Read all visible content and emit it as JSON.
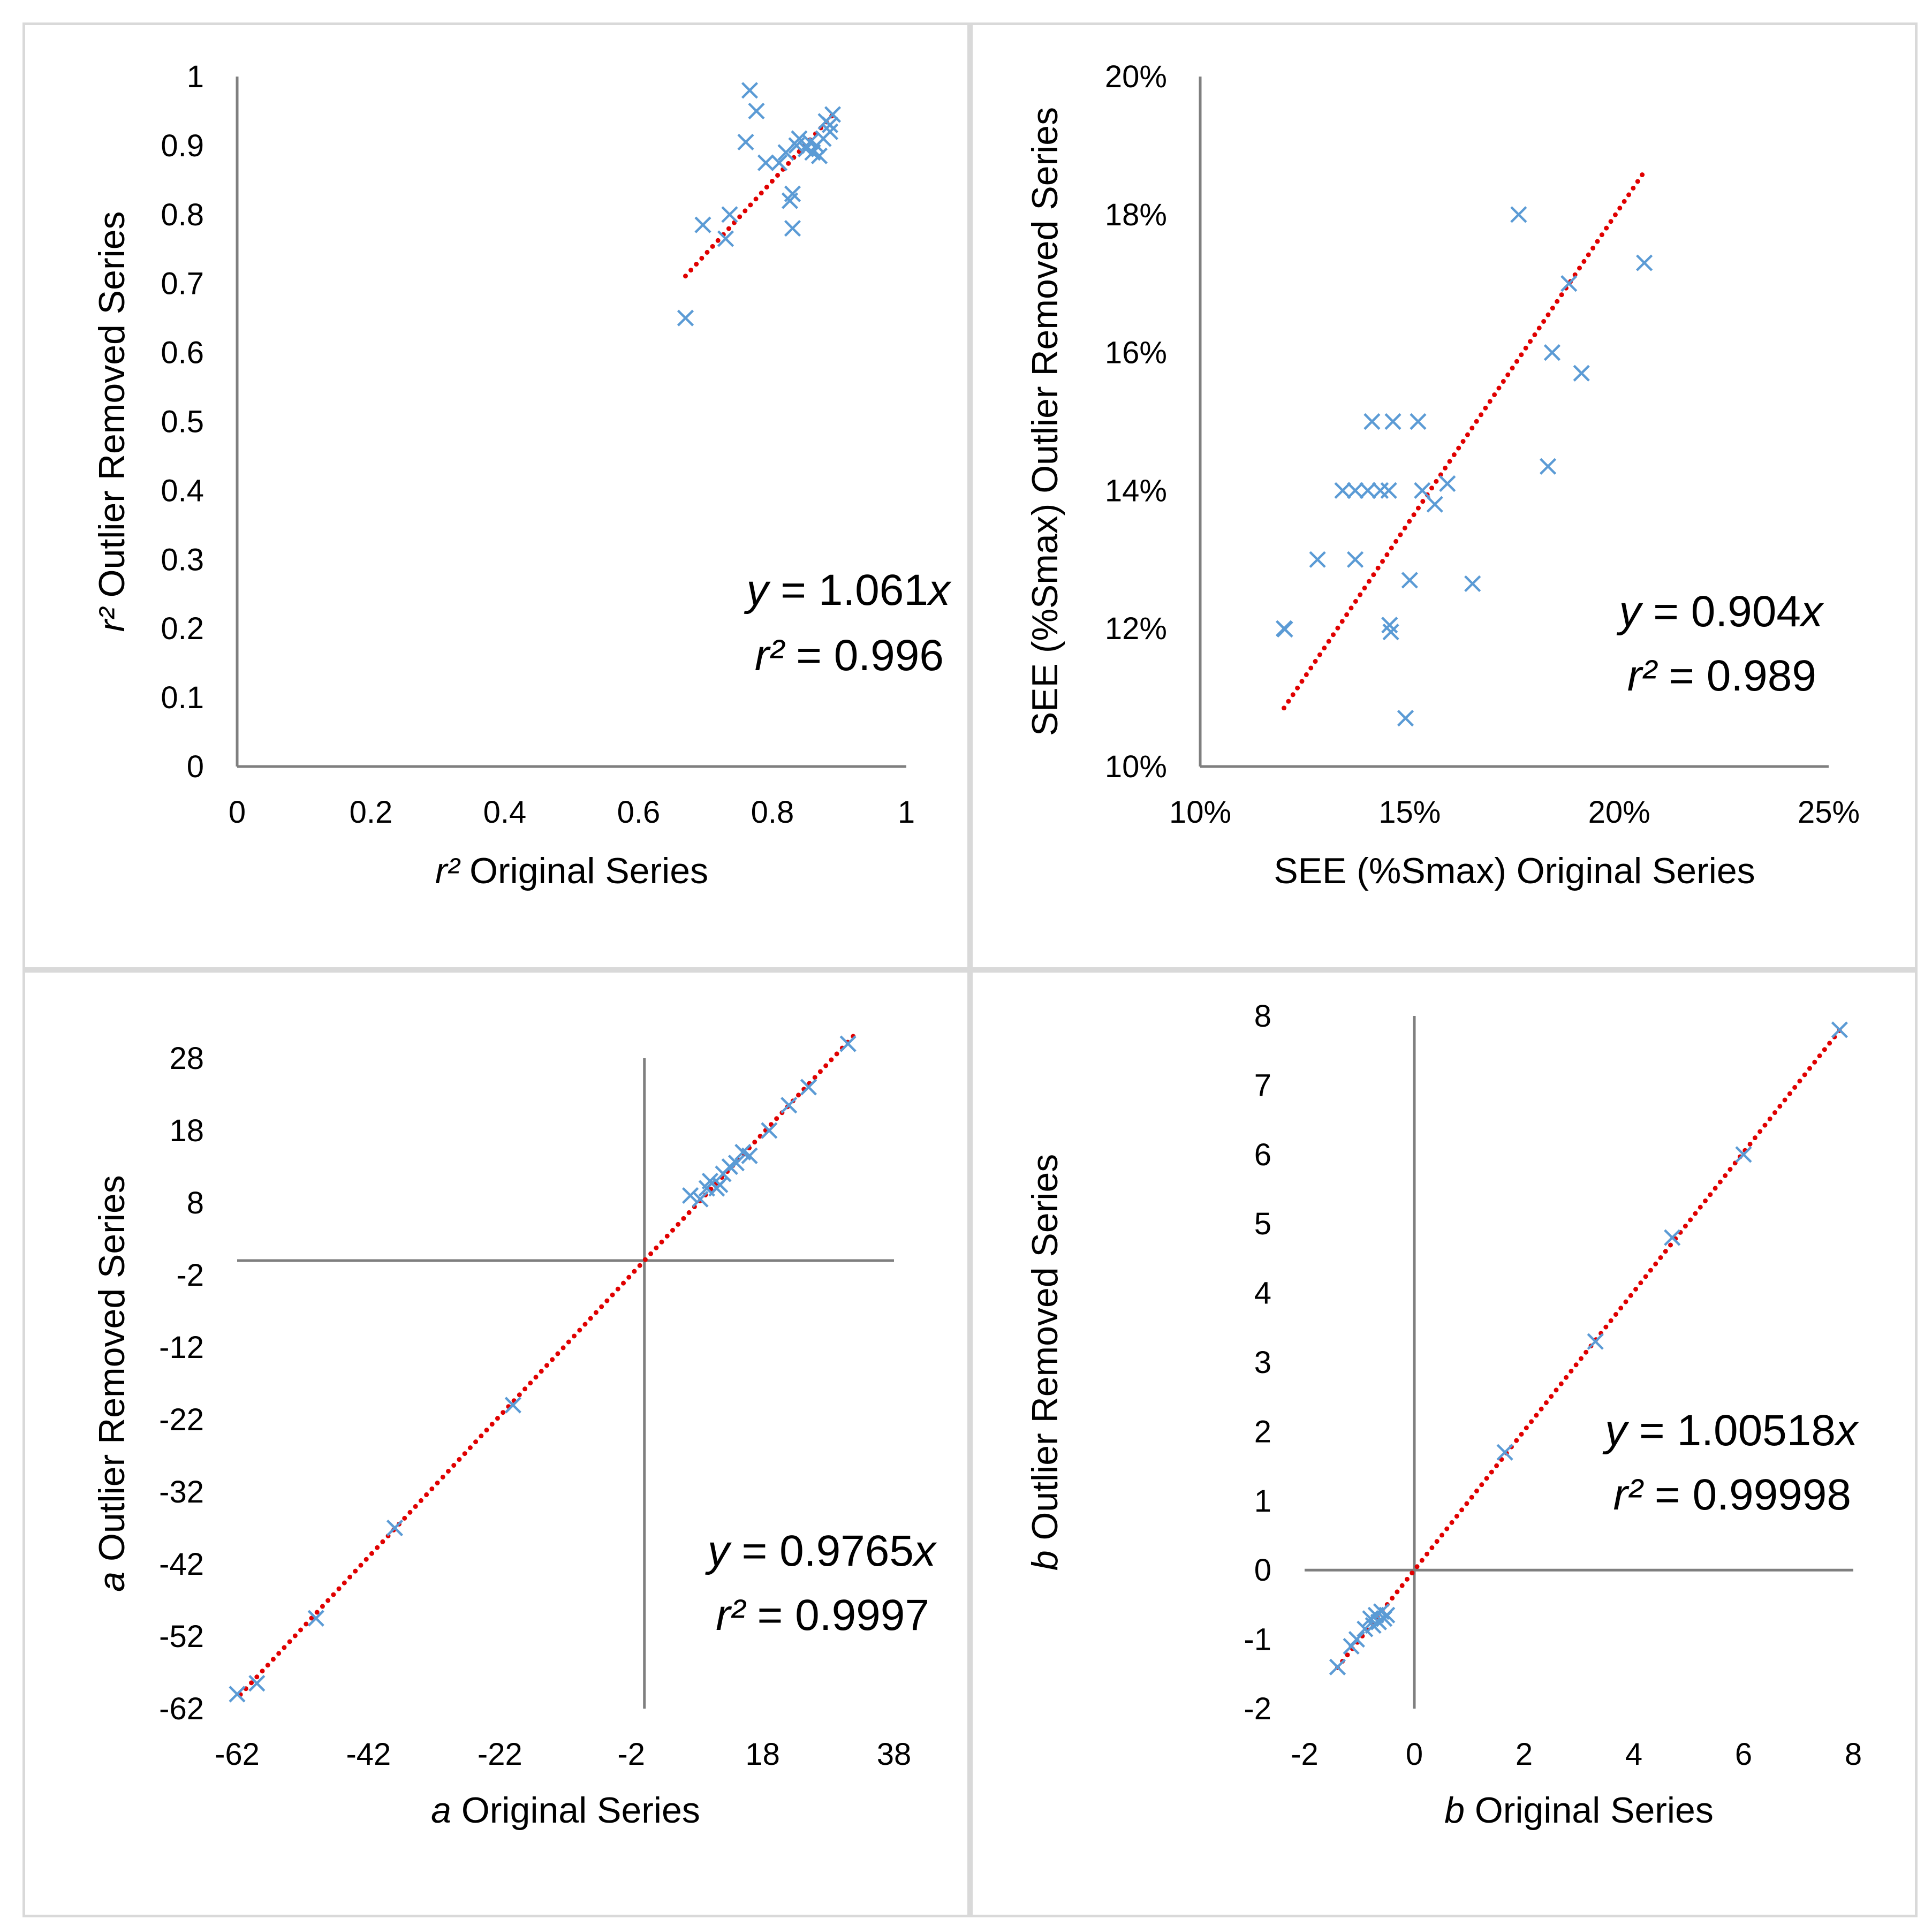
{
  "chart_data": [
    {
      "type": "scatter",
      "xlabel_var": "r²",
      "xlabel": "Original Series",
      "ylabel_var": "r²",
      "ylabel": "Outlier Removed Series",
      "xlim": [
        0,
        1
      ],
      "ylim": [
        0,
        1
      ],
      "xticks": [
        0,
        0.2,
        0.4,
        0.6,
        0.8,
        1
      ],
      "yticks": [
        0,
        0.1,
        0.2,
        0.3,
        0.4,
        0.5,
        0.6,
        0.7,
        0.8,
        0.9,
        1
      ],
      "tick_format": "plain",
      "equation": [
        "y",
        " = 1.061",
        "x"
      ],
      "r2": [
        "r²",
        " = 0.996"
      ],
      "trendline": {
        "slope": 1.061,
        "x_range": [
          0.67,
          0.89
        ]
      },
      "marker_color": "#5b9bd5",
      "trend_color": "#e00000",
      "points": [
        [
          0.67,
          0.65
        ],
        [
          0.696,
          0.785
        ],
        [
          0.73,
          0.765
        ],
        [
          0.736,
          0.8
        ],
        [
          0.76,
          0.905
        ],
        [
          0.766,
          0.98
        ],
        [
          0.776,
          0.95
        ],
        [
          0.79,
          0.875
        ],
        [
          0.81,
          0.875
        ],
        [
          0.82,
          0.89
        ],
        [
          0.826,
          0.82
        ],
        [
          0.83,
          0.83
        ],
        [
          0.83,
          0.78
        ],
        [
          0.836,
          0.9
        ],
        [
          0.84,
          0.91
        ],
        [
          0.85,
          0.895
        ],
        [
          0.856,
          0.905
        ],
        [
          0.86,
          0.89
        ],
        [
          0.866,
          0.9
        ],
        [
          0.87,
          0.885
        ],
        [
          0.876,
          0.91
        ],
        [
          0.88,
          0.935
        ],
        [
          0.886,
          0.92
        ],
        [
          0.89,
          0.945
        ],
        [
          0.886,
          0.93
        ]
      ]
    },
    {
      "type": "scatter",
      "xlabel": "SEE (%Smax) Original Series",
      "ylabel": "SEE (%Smax) Outlier Removed Series",
      "xlim": [
        0.1,
        0.25
      ],
      "ylim": [
        0.1,
        0.2
      ],
      "xticks": [
        0.1,
        0.15,
        0.2,
        0.25
      ],
      "yticks": [
        0.1,
        0.12,
        0.14,
        0.16,
        0.18,
        0.2
      ],
      "tick_format": "percent",
      "equation": [
        "y",
        " = 0.904",
        "x"
      ],
      "r2": [
        "r²",
        " = 0.989"
      ],
      "trendline": {
        "slope": 0.904,
        "x_range": [
          0.12,
          0.206
        ]
      },
      "marker_color": "#5b9bd5",
      "trend_color": "#e00000",
      "points": [
        [
          0.12,
          0.12
        ],
        [
          0.1202,
          0.1199
        ],
        [
          0.128,
          0.13
        ],
        [
          0.134,
          0.14
        ],
        [
          0.137,
          0.14
        ],
        [
          0.137,
          0.13
        ],
        [
          0.14,
          0.14
        ],
        [
          0.141,
          0.15
        ],
        [
          0.143,
          0.14
        ],
        [
          0.145,
          0.14
        ],
        [
          0.146,
          0.15
        ],
        [
          0.1452,
          0.1205
        ],
        [
          0.1455,
          0.1195
        ],
        [
          0.149,
          0.107
        ],
        [
          0.15,
          0.127
        ],
        [
          0.152,
          0.15
        ],
        [
          0.153,
          0.14
        ],
        [
          0.156,
          0.138
        ],
        [
          0.159,
          0.141
        ],
        [
          0.165,
          0.1265
        ],
        [
          0.176,
          0.18
        ],
        [
          0.183,
          0.1435
        ],
        [
          0.184,
          0.16
        ],
        [
          0.188,
          0.17
        ],
        [
          0.191,
          0.157
        ],
        [
          0.206,
          0.173
        ]
      ]
    },
    {
      "type": "scatter",
      "xlabel_var": "a",
      "xlabel": "Original Series",
      "ylabel_var": "a",
      "ylabel": "Outlier Removed Series",
      "xlim": [
        -62,
        38
      ],
      "ylim": [
        -62,
        28
      ],
      "xticks": [
        -62,
        -42,
        -22,
        -2,
        18,
        38
      ],
      "yticks": [
        -62,
        -52,
        -42,
        -32,
        -22,
        -12,
        -2,
        8,
        18,
        28
      ],
      "tick_format": "plain",
      "zero_axes": true,
      "equation": [
        "y",
        " = 0.9765",
        "x"
      ],
      "r2": [
        "r²",
        " = 0.9997"
      ],
      "trendline": {
        "slope": 0.9765,
        "x_range": [
          -61.5,
          32
        ]
      },
      "marker_color": "#5b9bd5",
      "trend_color": "#e00000",
      "points": [
        [
          -62,
          -60
        ],
        [
          -59,
          -58.5
        ],
        [
          -50,
          -49.5
        ],
        [
          -38,
          -37
        ],
        [
          -20,
          -20
        ],
        [
          7,
          9
        ],
        [
          8.5,
          8.5
        ],
        [
          9.5,
          10
        ],
        [
          10,
          11
        ],
        [
          11,
          10
        ],
        [
          11.5,
          10.5
        ],
        [
          12,
          12
        ],
        [
          13,
          13
        ],
        [
          14,
          13.5
        ],
        [
          15,
          15
        ],
        [
          16,
          14.5
        ],
        [
          19,
          18
        ],
        [
          22,
          21.5
        ],
        [
          25,
          24
        ],
        [
          31,
          30
        ]
      ]
    },
    {
      "type": "scatter",
      "xlabel_var": "b",
      "xlabel": "Original Series",
      "ylabel_var": "b",
      "ylabel": "Outlier Removed Series",
      "xlim": [
        -2,
        8
      ],
      "ylim": [
        -2,
        8
      ],
      "xticks": [
        -2,
        0,
        2,
        4,
        6,
        8
      ],
      "yticks": [
        -2,
        -1,
        0,
        1,
        2,
        3,
        4,
        5,
        6,
        7,
        8
      ],
      "tick_format": "plain",
      "zero_axes": true,
      "equation": [
        "y",
        " = 1.00518",
        "x"
      ],
      "r2": [
        "r²",
        " = 0.99998"
      ],
      "trendline": {
        "slope": 1.00518,
        "x_range": [
          -1.4,
          7.75
        ]
      },
      "marker_color": "#5b9bd5",
      "trend_color": "#e00000",
      "points": [
        [
          -1.4,
          -1.4
        ],
        [
          -1.15,
          -1.1
        ],
        [
          -1.05,
          -1.0
        ],
        [
          -0.9,
          -0.85
        ],
        [
          -0.8,
          -0.7
        ],
        [
          -0.75,
          -0.8
        ],
        [
          -0.7,
          -0.65
        ],
        [
          -0.65,
          -0.75
        ],
        [
          -0.6,
          -0.6
        ],
        [
          -0.55,
          -0.7
        ],
        [
          -0.5,
          -0.65
        ],
        [
          1.65,
          1.7
        ],
        [
          3.3,
          3.3
        ],
        [
          4.7,
          4.8
        ],
        [
          6,
          6
        ],
        [
          7.75,
          7.8
        ]
      ]
    }
  ]
}
